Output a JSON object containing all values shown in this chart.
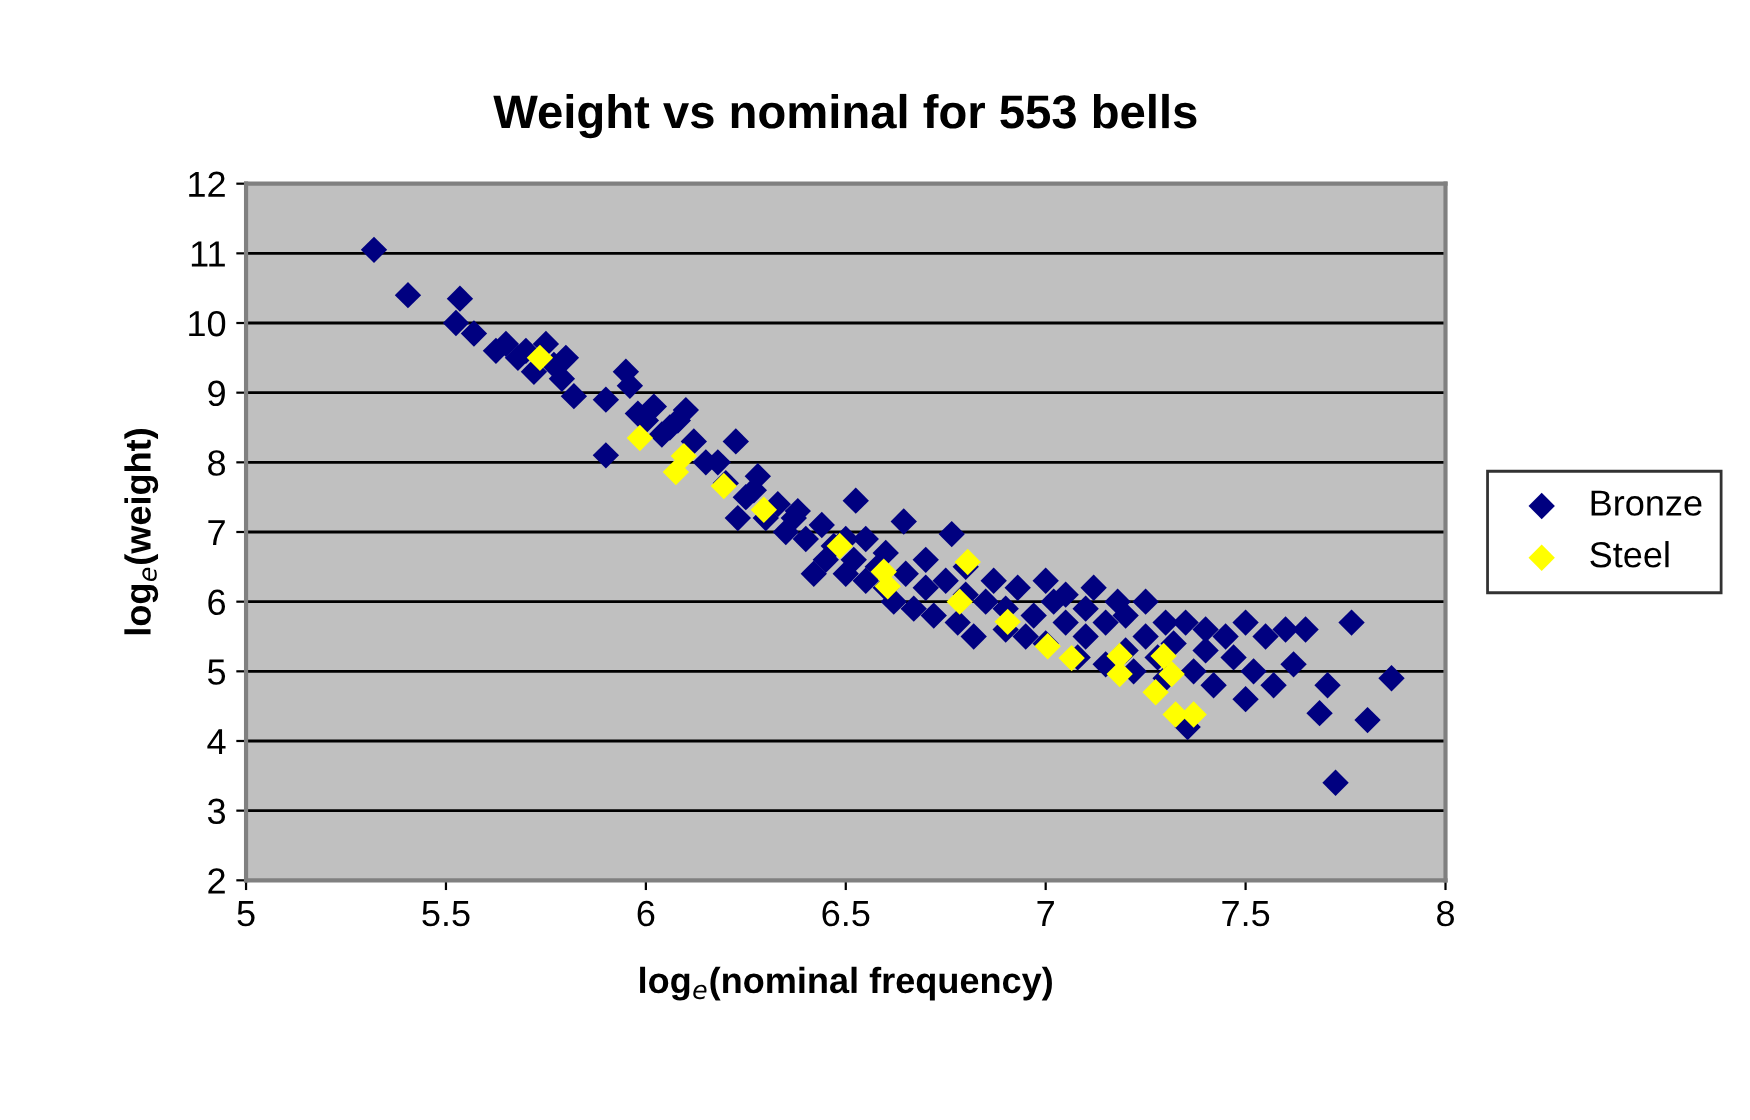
{
  "chart_data": {
    "type": "scatter",
    "title": "Weight vs nominal for 553 bells",
    "xlabel": "log$_{e}$(nominal frequency)",
    "ylabel": "log$_{e}$(weight)",
    "xlim": [
      5,
      8
    ],
    "xticks": [
      5,
      5.5,
      6,
      6.5,
      7,
      7.5,
      8
    ],
    "ylim": [
      2,
      12
    ],
    "yticks": [
      2,
      3,
      4,
      5,
      6,
      7,
      8,
      9,
      10,
      11,
      12
    ],
    "grid": "y",
    "legend": "right",
    "marker": "diamond",
    "series": [
      {
        "name": "Bronze",
        "color": "#000080",
        "x": [
          5.32,
          5.405,
          5.535,
          5.525,
          5.57,
          5.625,
          5.65,
          5.68,
          5.7,
          5.72,
          5.75,
          5.77,
          5.79,
          5.8,
          5.82,
          5.9,
          5.95,
          5.96,
          5.98,
          6.0,
          6.02,
          6.04,
          6.06,
          6.1,
          6.12,
          6.15,
          6.2,
          6.225,
          6.23,
          6.25,
          6.28,
          6.3,
          6.33,
          6.35,
          6.37,
          6.4,
          6.42,
          6.44,
          6.45,
          6.47,
          6.5,
          6.5,
          6.52,
          6.525,
          6.55,
          6.55,
          6.58,
          6.6,
          6.6,
          6.62,
          6.645,
          6.65,
          6.67,
          6.7,
          6.7,
          6.72,
          6.75,
          6.765,
          6.78,
          6.8,
          6.8,
          6.82,
          6.85,
          6.87,
          6.9,
          6.9,
          6.93,
          6.95,
          6.97,
          7.0,
          7.0,
          7.02,
          7.05,
          7.05,
          7.08,
          7.1,
          7.1,
          7.12,
          7.15,
          7.15,
          7.18,
          7.2,
          7.2,
          7.22,
          7.25,
          7.25,
          7.28,
          7.3,
          7.3,
          7.32,
          7.35,
          7.355,
          7.37,
          7.4,
          7.4,
          7.42,
          7.45,
          7.47,
          7.5,
          7.5,
          7.52,
          7.55,
          7.57,
          7.6,
          7.62,
          7.65,
          7.685,
          7.705,
          7.725,
          7.765,
          7.805,
          7.865,
          5.9,
          6.08,
          6.18,
          6.27,
          6.38
        ],
        "values": [
          11.05,
          10.4,
          10.35,
          10.0,
          9.85,
          9.6,
          9.7,
          9.5,
          9.6,
          9.3,
          9.7,
          9.4,
          9.2,
          9.5,
          8.95,
          8.1,
          9.3,
          9.1,
          8.7,
          8.6,
          8.8,
          8.4,
          8.5,
          8.75,
          8.3,
          8.0,
          7.7,
          8.3,
          7.2,
          7.5,
          7.8,
          7.2,
          7.4,
          7.0,
          7.2,
          6.9,
          6.4,
          7.1,
          6.6,
          6.8,
          6.9,
          6.4,
          6.6,
          7.45,
          6.3,
          6.9,
          6.5,
          6.2,
          6.7,
          6.0,
          7.15,
          6.4,
          5.9,
          6.2,
          6.6,
          5.8,
          6.3,
          6.97,
          5.7,
          6.1,
          6.5,
          5.5,
          6.0,
          6.3,
          5.6,
          5.9,
          6.2,
          5.5,
          5.8,
          6.3,
          5.4,
          6.0,
          5.7,
          6.1,
          5.2,
          5.5,
          5.9,
          6.2,
          5.1,
          5.7,
          6.0,
          5.3,
          5.8,
          5.0,
          5.5,
          6.0,
          5.2,
          5.7,
          4.9,
          5.4,
          5.7,
          4.2,
          5.0,
          5.6,
          5.3,
          4.8,
          5.5,
          5.2,
          5.7,
          4.6,
          5.0,
          5.5,
          4.8,
          5.6,
          5.1,
          5.6,
          4.4,
          4.8,
          3.4,
          5.7,
          4.3,
          4.9,
          8.9,
          8.6,
          8.0,
          7.6,
          7.3
        ]
      },
      {
        "name": "Steel",
        "color": "#ffff00",
        "x": [
          5.735,
          5.985,
          6.095,
          6.075,
          6.195,
          6.295,
          6.485,
          6.595,
          6.605,
          6.805,
          6.785,
          6.905,
          7.005,
          7.065,
          7.185,
          7.185,
          7.295,
          7.315,
          7.275,
          7.325,
          7.37
        ],
        "values": [
          9.5,
          8.35,
          8.09,
          7.86,
          7.66,
          7.32,
          6.8,
          6.43,
          6.22,
          6.57,
          6.0,
          5.71,
          5.36,
          5.19,
          5.22,
          4.96,
          5.22,
          4.96,
          4.7,
          4.38,
          4.38
        ]
      }
    ]
  }
}
